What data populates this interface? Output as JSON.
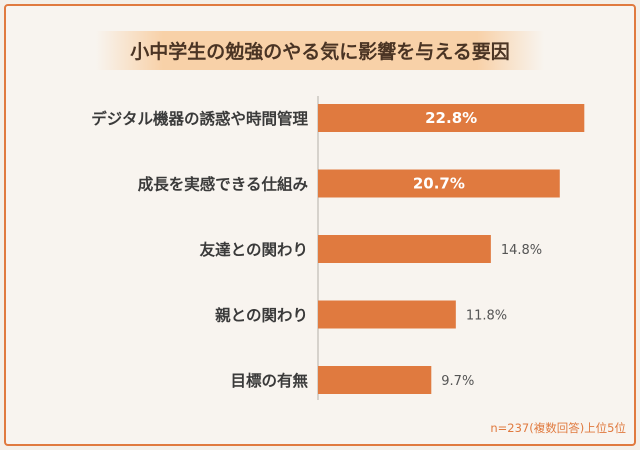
{
  "chart_data": {
    "type": "bar",
    "orientation": "horizontal",
    "title": "小中学生の勉強のやる気に影響を与える要因",
    "categories": [
      "デジタル機器の誘惑や時間管理",
      "成長を実感できる仕組み",
      "友達との関わり",
      "親との関わり",
      "目標の有無"
    ],
    "values": [
      22.8,
      20.7,
      14.8,
      11.8,
      9.7
    ],
    "value_labels": [
      "22.8%",
      "20.7%",
      "14.8%",
      "11.8%",
      "9.7%"
    ],
    "xlim": [
      0,
      25
    ],
    "grid": false,
    "bar_color": "#e07a3f",
    "note": "n=237(複数回答)上位5位"
  }
}
